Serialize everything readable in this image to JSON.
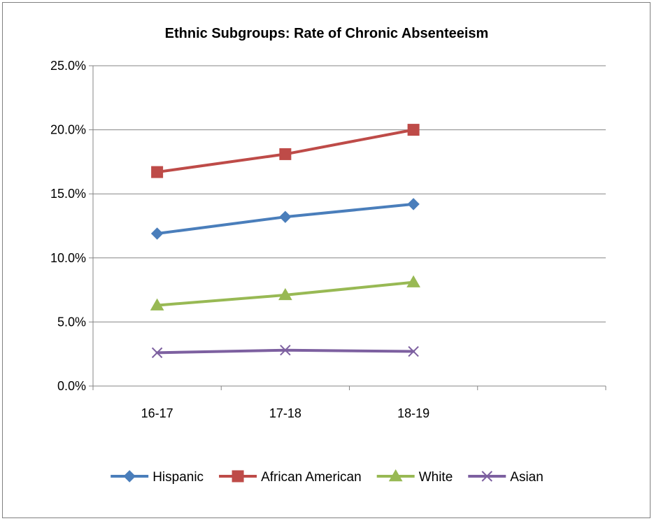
{
  "chart_data": {
    "type": "line",
    "title": "Ethnic Subgroups: Rate of Chronic Absenteeism",
    "xlabel": "",
    "ylabel": "",
    "categories": [
      "16-17",
      "17-18",
      "18-19"
    ],
    "x_slots": 4,
    "ylim": [
      0,
      25
    ],
    "y_ticks": [
      0,
      5,
      10,
      15,
      20,
      25
    ],
    "y_tick_labels": [
      "0.0%",
      "5.0%",
      "10.0%",
      "15.0%",
      "20.0%",
      "25.0%"
    ],
    "y_grid": true,
    "legend_position": "bottom",
    "series": [
      {
        "name": "Hispanic",
        "values": [
          11.9,
          13.2,
          14.2
        ],
        "color": "#4a7ebb",
        "marker": "diamond"
      },
      {
        "name": "African American",
        "values": [
          16.7,
          18.1,
          20.0
        ],
        "color": "#be4b48",
        "marker": "square"
      },
      {
        "name": "White",
        "values": [
          6.3,
          7.1,
          8.1
        ],
        "color": "#98b954",
        "marker": "triangle"
      },
      {
        "name": "Asian",
        "values": [
          2.6,
          2.8,
          2.7
        ],
        "color": "#7d60a0",
        "marker": "x"
      }
    ]
  }
}
